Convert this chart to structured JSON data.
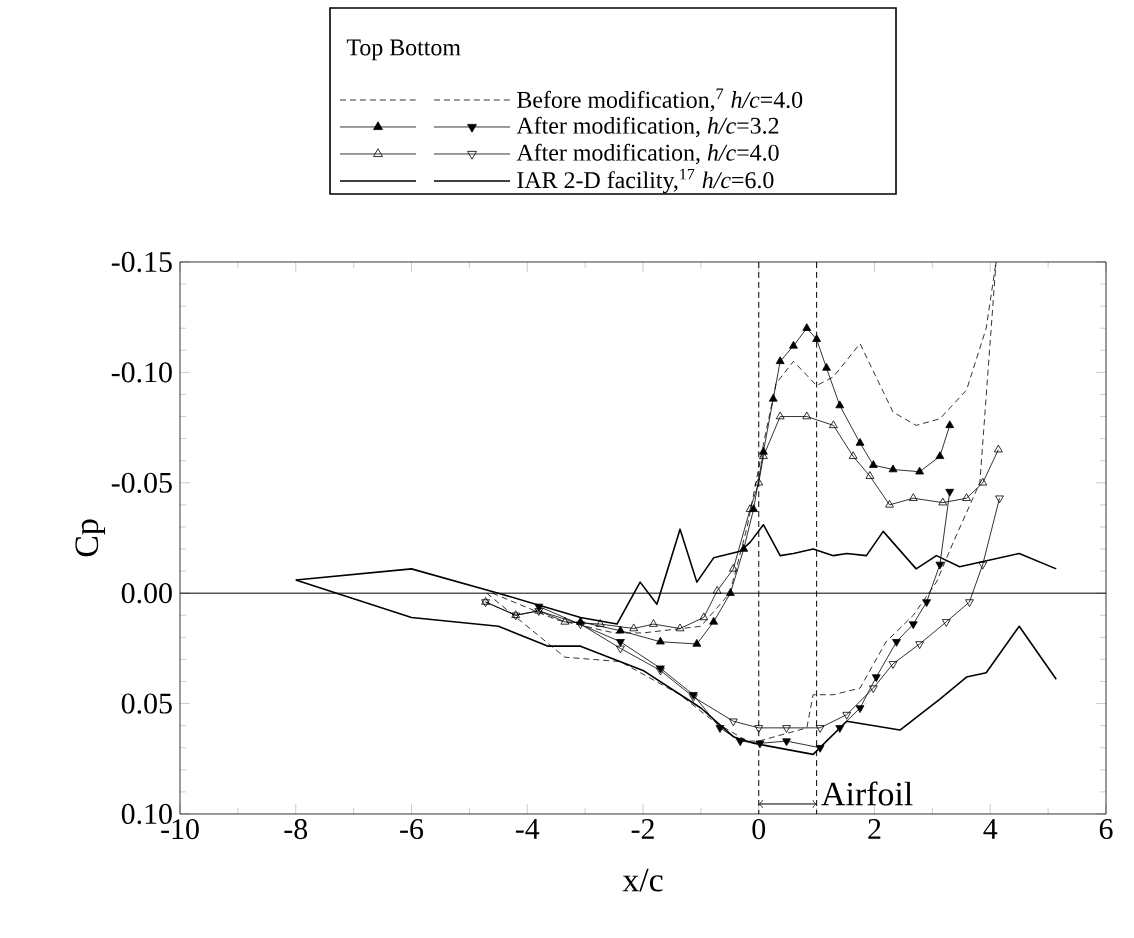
{
  "chart_data": {
    "type": "line",
    "xlabel": "x/c",
    "ylabel": "Cp",
    "legend_title": "Top   Bottom",
    "legend": "top",
    "xlim": [
      -10,
      6
    ],
    "xticks": [
      -10,
      -8,
      -6,
      -4,
      -2,
      0,
      2,
      4,
      6
    ],
    "ylim": [
      0.1,
      -0.15
    ],
    "yticks": [
      {
        "value": -0.15,
        "label": "-0.15"
      },
      {
        "value": -0.1,
        "label": "-0.10"
      },
      {
        "value": -0.05,
        "label": "-0.05"
      },
      {
        "value": 0,
        "label": "0.00"
      },
      {
        "value": 0.05,
        "label": "0.05"
      },
      {
        "value": 0.1,
        "label": "0.10"
      }
    ],
    "ref_lines": [
      {
        "axis": "y",
        "value": 0,
        "line_style": "solid"
      },
      {
        "axis": "x",
        "value": 0,
        "line_style": "dashed"
      },
      {
        "axis": "x",
        "value": 1,
        "line_style": "dashed"
      }
    ],
    "annotations": [
      "Airfoil"
    ],
    "series": [
      {
        "name": "Before modification,$^{7}$ *h/c*=4.0",
        "color": "#000000",
        "line_style": "dashed",
        "marker": "none",
        "x": [
          -4.6,
          -3.5,
          -2.5,
          -2,
          -1,
          -0.5,
          -0.2,
          0.1,
          0.3,
          0.6,
          1.0,
          1.29,
          1.75,
          2.32,
          2.72,
          3.13,
          3.59,
          3.93,
          4.1
        ],
        "values": [
          0.0,
          0.012,
          0.018,
          0.018,
          0.015,
          0.0,
          -0.03,
          -0.07,
          -0.095,
          -0.105,
          -0.094,
          -0.098,
          -0.113,
          -0.082,
          -0.076,
          -0.079,
          -0.092,
          -0.12,
          -0.15
        ]
      },
      {
        "color": "#000000",
        "line_style": "dashed",
        "marker": "none",
        "x": [
          -4.7,
          -3.35,
          -2.39,
          -1.36,
          -0.78,
          -0.2,
          0.0,
          0.83,
          0.94,
          1.29,
          1.75,
          2.2,
          2.67,
          3.07,
          3.36,
          3.82,
          4.1
        ],
        "values": [
          0.0,
          0.029,
          0.031,
          0.046,
          0.058,
          0.067,
          0.067,
          0.061,
          0.046,
          0.046,
          0.043,
          0.022,
          0.01,
          -0.005,
          -0.023,
          -0.05,
          -0.15
        ]
      },
      {
        "name": "After modification, *h/c*=3.2",
        "color": "#000000",
        "line_style": "solid",
        "marker": "triangle",
        "x": [
          -3.08,
          -2.39,
          -1.7,
          -1.07,
          -0.78,
          -0.49,
          -0.26,
          -0.09,
          0.08,
          0.25,
          0.37,
          0.6,
          0.83,
          1.0,
          1.17,
          1.4,
          1.75,
          1.98,
          2.32,
          2.78,
          3.13,
          3.3
        ],
        "values": [
          0.013,
          0.017,
          0.022,
          0.023,
          0.013,
          0.0,
          -0.02,
          -0.038,
          -0.064,
          -0.088,
          -0.105,
          -0.112,
          -0.12,
          -0.115,
          -0.102,
          -0.085,
          -0.068,
          -0.058,
          -0.056,
          -0.055,
          -0.062,
          -0.076
        ]
      },
      {
        "color": "#000000",
        "line_style": "solid",
        "marker": "triangle-down",
        "x": [
          -3.8,
          -2.39,
          -1.7,
          -1.13,
          -0.67,
          -0.32,
          0.02,
          0.48,
          1.06,
          1.4,
          1.75,
          2.03,
          2.38,
          2.67,
          2.9,
          3.13,
          3.3
        ],
        "values": [
          0.006,
          0.022,
          0.034,
          0.046,
          0.061,
          0.067,
          0.068,
          0.067,
          0.07,
          0.061,
          0.052,
          0.038,
          0.022,
          0.014,
          0.004,
          -0.013,
          -0.046
        ]
      },
      {
        "name": "After modification, *h/c*=4.0",
        "color": "#000000",
        "line_style": "solid",
        "marker": "triangle-open",
        "x": [
          -4.72,
          -4.2,
          -3.8,
          -3.35,
          -2.74,
          -2.16,
          -1.82,
          -1.36,
          -0.95,
          -0.72,
          -0.44,
          -0.15,
          0.0,
          0.08,
          0.37,
          0.83,
          1.29,
          1.63,
          1.92,
          2.26,
          2.67,
          3.18,
          3.59,
          3.87,
          4.14
        ],
        "values": [
          0.004,
          0.01,
          0.008,
          0.013,
          0.014,
          0.016,
          0.014,
          0.016,
          0.011,
          -0.001,
          -0.011,
          -0.038,
          -0.05,
          -0.062,
          -0.08,
          -0.08,
          -0.076,
          -0.062,
          -0.053,
          -0.04,
          -0.043,
          -0.041,
          -0.043,
          -0.05,
          -0.065
        ]
      },
      {
        "color": "#000000",
        "line_style": "solid",
        "marker": "triangle-down-open",
        "x": [
          -4.72,
          -4.2,
          -3.8,
          -3.08,
          -2.39,
          -1.7,
          -1.13,
          -0.44,
          0.0,
          0.48,
          1.06,
          1.52,
          1.98,
          2.32,
          2.78,
          3.24,
          3.64,
          3.87,
          4.16
        ],
        "values": [
          0.004,
          0.01,
          0.008,
          0.014,
          0.025,
          0.035,
          0.047,
          0.058,
          0.061,
          0.061,
          0.061,
          0.055,
          0.043,
          0.032,
          0.023,
          0.013,
          0.004,
          -0.013,
          -0.043
        ]
      },
      {
        "name": "IAR 2-D facility,$^{17}$ *h/c*=6.0",
        "color": "#000000",
        "line_style": "solid",
        "marker": "none",
        "x": [
          -8,
          -6,
          -4.5,
          -3.08,
          -2.45,
          -2.05,
          -1.76,
          -1.36,
          -1.07,
          -0.78,
          -0.32,
          -0.15,
          0.08,
          0.37,
          0.6,
          0.94,
          1.29,
          1.52,
          1.86,
          2.15,
          2.72,
          3.07,
          3.47,
          3.82,
          4.5,
          5.14
        ],
        "values": [
          -0.006,
          -0.011,
          0.0,
          0.011,
          0.014,
          -0.005,
          0.005,
          -0.029,
          -0.005,
          -0.016,
          -0.019,
          -0.023,
          -0.031,
          -0.017,
          -0.018,
          -0.02,
          -0.017,
          -0.018,
          -0.017,
          -0.028,
          -0.011,
          -0.017,
          -0.012,
          -0.014,
          -0.018,
          -0.011
        ]
      },
      {
        "color": "#000000",
        "line_style": "solid",
        "marker": "none",
        "x": [
          -8,
          -6,
          -4.5,
          -3.64,
          -3.08,
          -2.0,
          -1.0,
          -0.44,
          -0.09,
          0.94,
          1.52,
          2.44,
          3.13,
          3.59,
          3.93,
          4.5,
          5.14
        ],
        "values": [
          -0.006,
          0.011,
          0.015,
          0.024,
          0.024,
          0.035,
          0.052,
          0.065,
          0.068,
          0.073,
          0.058,
          0.062,
          0.048,
          0.038,
          0.036,
          0.015,
          0.039
        ]
      }
    ]
  }
}
